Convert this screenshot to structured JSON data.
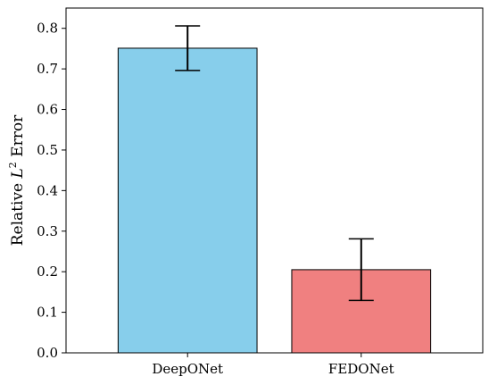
{
  "chart_data": {
    "type": "bar",
    "categories": [
      "DeepONet",
      "FEDONet"
    ],
    "values": [
      0.751,
      0.205
    ],
    "errors": [
      0.055,
      0.076
    ],
    "colors": [
      "#87ceeb",
      "#f08080"
    ],
    "title": "",
    "xlabel": "",
    "ylabel_prefix": "Relative ",
    "ylabel_symbol": "L",
    "ylabel_superscript": "2",
    "ylabel_suffix": " Error",
    "ylim": [
      0,
      0.85
    ],
    "yticks": [
      "0.0",
      "0.1",
      "0.2",
      "0.3",
      "0.4",
      "0.5",
      "0.6",
      "0.7",
      "0.8"
    ],
    "grid": false
  }
}
